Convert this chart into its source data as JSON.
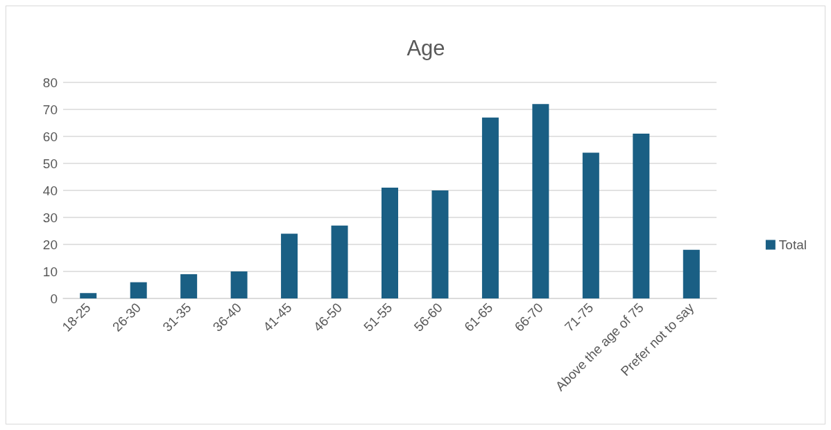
{
  "chart_data": {
    "type": "bar",
    "title": "Age",
    "categories": [
      "18-25",
      "26-30",
      "31-35",
      "36-40",
      "41-45",
      "46-50",
      "51-55",
      "56-60",
      "61-65",
      "66-70",
      "71-75",
      "Above the age of 75",
      "Prefer not to say"
    ],
    "series": [
      {
        "name": "Total",
        "color": "#1a5f84",
        "values": [
          2,
          6,
          9,
          10,
          24,
          27,
          41,
          40,
          67,
          72,
          54,
          61,
          18
        ]
      }
    ],
    "ylim": [
      0,
      80
    ],
    "yticks": [
      0,
      10,
      20,
      30,
      40,
      50,
      60,
      70,
      80
    ],
    "grid": "y",
    "legend": "right"
  }
}
